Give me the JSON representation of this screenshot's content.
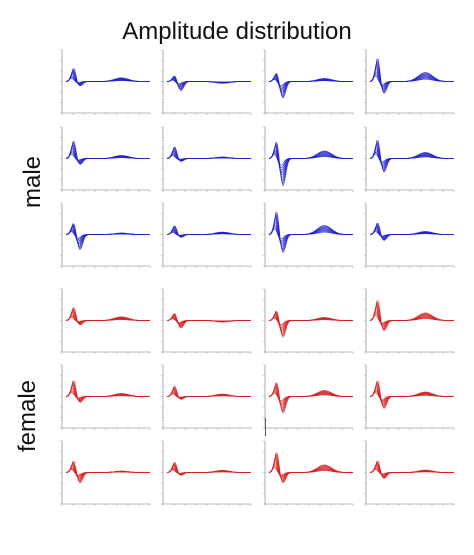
{
  "title": "Amplitude distribution",
  "groups": [
    {
      "key": "male",
      "label": "male",
      "color": "#2323c8"
    },
    {
      "key": "female",
      "label": "female",
      "color": "#d42323"
    }
  ],
  "chart_data": {
    "type": "line",
    "title": "Amplitude distribution",
    "layout": "6 rows × 4 columns of small multiples; rows 1–3 male (blue), rows 4–6 female (red)",
    "x_domain": [
      0,
      3000
    ],
    "y_domain": [
      -1,
      1
    ],
    "grid": false,
    "note": "Each panel shows a family of ~9 overlaid waveform curves: an early positive/negative deflection near x≈300 and a broad later positive hump near x≈2000. Tick labels and panel titles are too small to read.",
    "panels": [
      {
        "group": "male",
        "row": 1,
        "col": 1,
        "peak": 0.45,
        "dip": -0.15,
        "hump": 0.12
      },
      {
        "group": "male",
        "row": 1,
        "col": 2,
        "peak": 0.2,
        "dip": -0.3,
        "hump": -0.06
      },
      {
        "group": "male",
        "row": 1,
        "col": 3,
        "peak": 0.3,
        "dip": -0.55,
        "hump": 0.1
      },
      {
        "group": "male",
        "row": 1,
        "col": 4,
        "peak": 0.8,
        "dip": -0.4,
        "hump": 0.3
      },
      {
        "group": "male",
        "row": 2,
        "col": 1,
        "peak": 0.6,
        "dip": -0.2,
        "hump": 0.1
      },
      {
        "group": "male",
        "row": 2,
        "col": 2,
        "peak": 0.4,
        "dip": -0.1,
        "hump": 0.05
      },
      {
        "group": "male",
        "row": 2,
        "col": 3,
        "peak": 0.6,
        "dip": -0.9,
        "hump": 0.25
      },
      {
        "group": "male",
        "row": 2,
        "col": 4,
        "peak": 0.65,
        "dip": -0.45,
        "hump": 0.2
      },
      {
        "group": "male",
        "row": 3,
        "col": 1,
        "peak": 0.4,
        "dip": -0.5,
        "hump": 0.05
      },
      {
        "group": "male",
        "row": 3,
        "col": 2,
        "peak": 0.3,
        "dip": -0.1,
        "hump": 0.08
      },
      {
        "group": "male",
        "row": 3,
        "col": 3,
        "peak": 0.8,
        "dip": -0.6,
        "hump": 0.3
      },
      {
        "group": "male",
        "row": 3,
        "col": 4,
        "peak": 0.4,
        "dip": -0.2,
        "hump": 0.1
      },
      {
        "group": "female",
        "row": 1,
        "col": 1,
        "peak": 0.45,
        "dip": -0.15,
        "hump": 0.12
      },
      {
        "group": "female",
        "row": 1,
        "col": 2,
        "peak": 0.25,
        "dip": -0.25,
        "hump": -0.05
      },
      {
        "group": "female",
        "row": 1,
        "col": 3,
        "peak": 0.35,
        "dip": -0.55,
        "hump": 0.1
      },
      {
        "group": "female",
        "row": 1,
        "col": 4,
        "peak": 0.7,
        "dip": -0.35,
        "hump": 0.25
      },
      {
        "group": "female",
        "row": 2,
        "col": 1,
        "peak": 0.55,
        "dip": -0.2,
        "hump": 0.1
      },
      {
        "group": "female",
        "row": 2,
        "col": 2,
        "peak": 0.35,
        "dip": -0.1,
        "hump": 0.08
      },
      {
        "group": "female",
        "row": 2,
        "col": 3,
        "peak": 0.5,
        "dip": -0.55,
        "hump": 0.2
      },
      {
        "group": "female",
        "row": 2,
        "col": 4,
        "peak": 0.55,
        "dip": -0.4,
        "hump": 0.15
      },
      {
        "group": "female",
        "row": 3,
        "col": 1,
        "peak": 0.4,
        "dip": -0.35,
        "hump": 0.05
      },
      {
        "group": "female",
        "row": 3,
        "col": 2,
        "peak": 0.35,
        "dip": -0.1,
        "hump": 0.07
      },
      {
        "group": "female",
        "row": 3,
        "col": 3,
        "peak": 0.7,
        "dip": -0.35,
        "hump": 0.25
      },
      {
        "group": "female",
        "row": 3,
        "col": 4,
        "peak": 0.4,
        "dip": -0.2,
        "hump": 0.08
      }
    ]
  }
}
